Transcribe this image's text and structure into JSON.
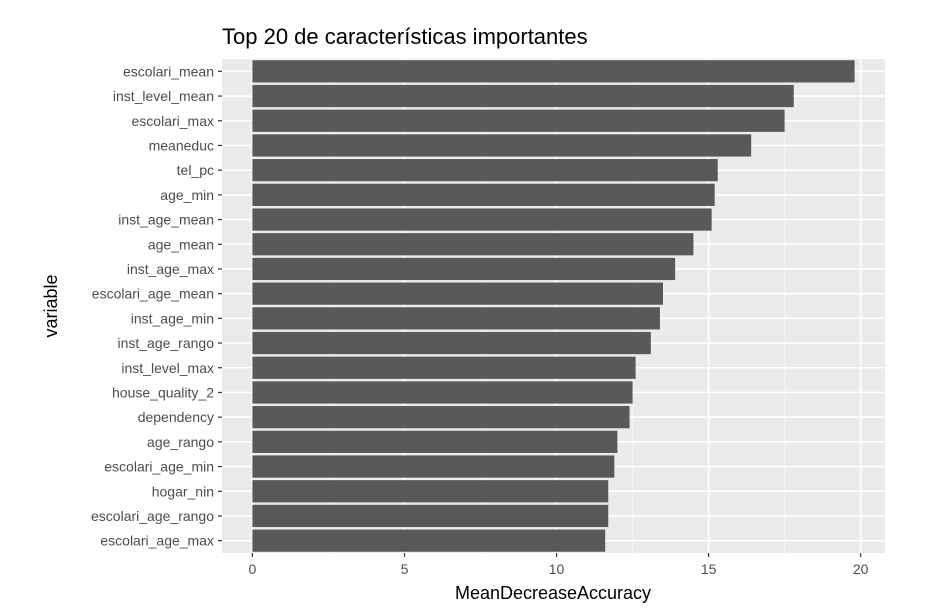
{
  "chart_data": {
    "type": "bar",
    "orientation": "horizontal",
    "title": "Top 20 de características importantes",
    "xlabel": "MeanDecreaseAccuracy",
    "ylabel": "variable",
    "xlim": [
      -1,
      20.8
    ],
    "xticks": [
      0,
      5,
      10,
      15,
      20
    ],
    "grid": true,
    "legend": "none",
    "categories": [
      "escolari_mean",
      "inst_level_mean",
      "escolari_max",
      "meaneduc",
      "tel_pc",
      "age_min",
      "inst_age_mean",
      "age_mean",
      "inst_age_max",
      "escolari_age_mean",
      "inst_age_min",
      "inst_age_rango",
      "inst_level_max",
      "house_quality_2",
      "dependency",
      "age_rango",
      "escolari_age_min",
      "hogar_nin",
      "escolari_age_rango",
      "escolari_age_max"
    ],
    "values": [
      19.8,
      17.8,
      17.5,
      16.4,
      15.3,
      15.2,
      15.1,
      14.5,
      13.9,
      13.5,
      13.4,
      13.1,
      12.6,
      12.5,
      12.4,
      12.0,
      11.9,
      11.7,
      11.7,
      11.6
    ],
    "colors": {
      "bar": "#595959",
      "panel": "#ebebeb",
      "grid_major": "#ffffff",
      "tick_text": "#4d4d4d",
      "tick_mark": "#333333"
    }
  }
}
